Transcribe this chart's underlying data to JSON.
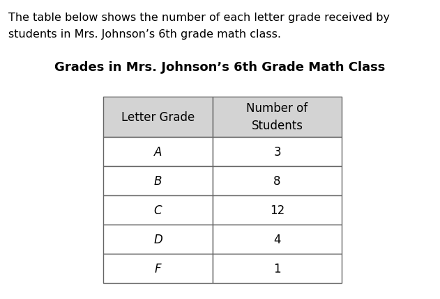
{
  "description_line1": "The table below shows the number of each letter grade received by",
  "description_line2": "students in Mrs. Johnson’s 6th grade math class.",
  "title": "Grades in Mrs. Johnson’s 6th Grade Math Class",
  "col1_header": "Letter Grade",
  "col2_header": "Number of\nStudents",
  "grades": [
    "A",
    "B",
    "C",
    "D",
    "F"
  ],
  "counts": [
    "3",
    "8",
    "12",
    "4",
    "1"
  ],
  "background_color": "#ffffff",
  "header_bg": "#d3d3d3",
  "table_border_color": "#666666",
  "text_color": "#000000",
  "desc_fontsize": 11.5,
  "title_fontsize": 13,
  "table_fontsize": 12,
  "font_family": "Comic Sans MS"
}
